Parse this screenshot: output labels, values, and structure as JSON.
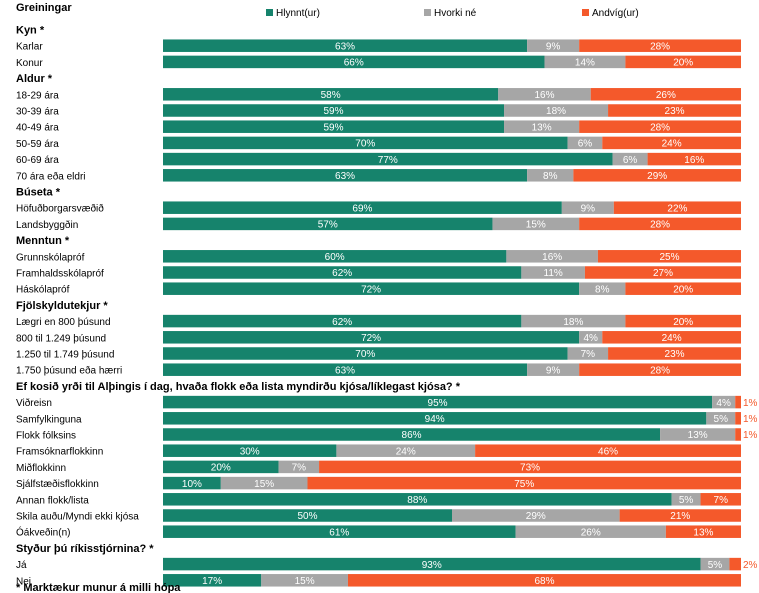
{
  "chart_data": {
    "type": "bar",
    "stacked": true,
    "orientation": "horizontal",
    "title": "Greiningar",
    "footnote": "* Marktækur munur á milli hópa",
    "series": [
      {
        "name": "Hlynnt(ur)",
        "color": "#16836c"
      },
      {
        "name": "Hvorki né",
        "color": "#a6a6a6"
      },
      {
        "name": "Andvíg(ur)",
        "color": "#f4592b"
      }
    ],
    "groups": [
      {
        "heading": "Kyn *",
        "rows": [
          {
            "label": "Karlar",
            "values": [
              63,
              9,
              28
            ]
          },
          {
            "label": "Konur",
            "values": [
              66,
              14,
              20
            ]
          }
        ]
      },
      {
        "heading": "Aldur *",
        "rows": [
          {
            "label": "18-29 ára",
            "values": [
              58,
              16,
              26
            ]
          },
          {
            "label": "30-39 ára",
            "values": [
              59,
              18,
              23
            ]
          },
          {
            "label": "40-49 ára",
            "values": [
              59,
              13,
              28
            ]
          },
          {
            "label": "50-59 ára",
            "values": [
              70,
              6,
              24
            ]
          },
          {
            "label": "60-69 ára",
            "values": [
              77,
              6,
              16
            ]
          },
          {
            "label": "70 ára eða eldri",
            "values": [
              63,
              8,
              29
            ]
          }
        ]
      },
      {
        "heading": "Búseta *",
        "rows": [
          {
            "label": "Höfuðborgarsvæðið",
            "values": [
              69,
              9,
              22
            ]
          },
          {
            "label": "Landsbyggðin",
            "values": [
              57,
              15,
              28
            ]
          }
        ]
      },
      {
        "heading": "Menntun *",
        "rows": [
          {
            "label": "Grunnskólapróf",
            "values": [
              60,
              16,
              25
            ]
          },
          {
            "label": "Framhaldsskólapróf",
            "values": [
              62,
              11,
              27
            ]
          },
          {
            "label": "Háskólapróf",
            "values": [
              72,
              8,
              20
            ]
          }
        ]
      },
      {
        "heading": "Fjölskyldutekjur *",
        "rows": [
          {
            "label": "Lægri en 800 þúsund",
            "values": [
              62,
              18,
              20
            ]
          },
          {
            "label": "800 til 1.249 þúsund",
            "values": [
              72,
              4,
              24
            ]
          },
          {
            "label": "1.250 til 1.749 þúsund",
            "values": [
              70,
              7,
              23
            ]
          },
          {
            "label": "1.750 þúsund eða hærri",
            "values": [
              63,
              9,
              28
            ]
          }
        ]
      },
      {
        "heading": "Ef kosið yrði til Alþingis í dag, hvaða flokk eða lista myndirðu kjósa/líklegast kjósa? *",
        "rows": [
          {
            "label": "Viðreisn",
            "values": [
              95,
              4,
              1
            ]
          },
          {
            "label": "Samfylkinguna",
            "values": [
              94,
              5,
              1
            ]
          },
          {
            "label": "Flokk fólksins",
            "values": [
              86,
              13,
              1
            ]
          },
          {
            "label": "Framsóknarflokkinn",
            "values": [
              30,
              24,
              46
            ]
          },
          {
            "label": "Miðflokkinn",
            "values": [
              20,
              7,
              73
            ]
          },
          {
            "label": "Sjálfstæðisflokkinn",
            "values": [
              10,
              15,
              75
            ]
          },
          {
            "label": "Annan flokk/lista",
            "values": [
              88,
              5,
              7
            ]
          },
          {
            "label": "Skila auðu/Myndi ekki kjósa",
            "values": [
              50,
              29,
              21
            ]
          },
          {
            "label": "Óákveðin(n)",
            "values": [
              61,
              26,
              13
            ]
          }
        ]
      },
      {
        "heading": "Styður þú ríkisstjórnina? *",
        "rows": [
          {
            "label": "Já",
            "values": [
              93,
              5,
              2
            ]
          },
          {
            "label": "Nei",
            "values": [
              17,
              15,
              68
            ]
          }
        ]
      }
    ]
  }
}
